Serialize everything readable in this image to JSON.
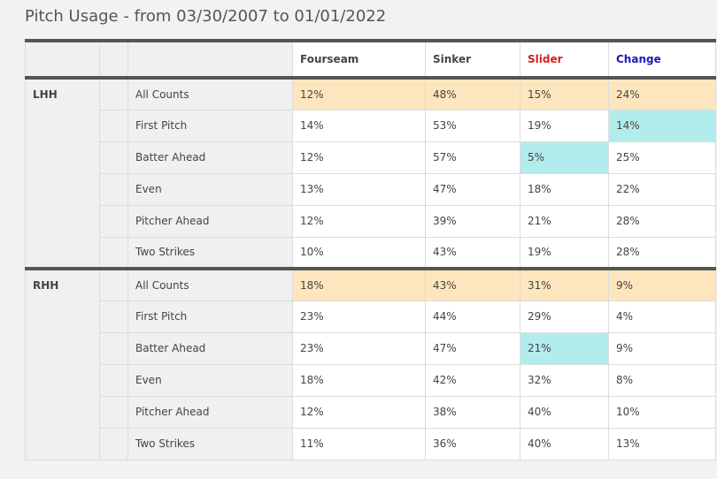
{
  "title": "Pitch Usage - from 03/30/2007 to 01/01/2022",
  "columns": [
    {
      "label": "Fourseam",
      "key": "fourseam",
      "color": "#444444"
    },
    {
      "label": "Sinker",
      "key": "sinker",
      "color": "#444444"
    },
    {
      "label": "Slider",
      "key": "slider",
      "color": "#d22020"
    },
    {
      "label": "Change",
      "key": "change",
      "color": "#1a1ab8"
    }
  ],
  "groups": [
    {
      "label": "LHH",
      "rows": [
        {
          "count": "All Counts",
          "values": [
            "12%",
            "48%",
            "15%",
            "24%"
          ],
          "highlight": []
        },
        {
          "count": "First Pitch",
          "values": [
            "14%",
            "53%",
            "19%",
            "14%"
          ],
          "highlight": [
            3
          ]
        },
        {
          "count": "Batter Ahead",
          "values": [
            "12%",
            "57%",
            "5%",
            "25%"
          ],
          "highlight": [
            2
          ]
        },
        {
          "count": "Even",
          "values": [
            "13%",
            "47%",
            "18%",
            "22%"
          ],
          "highlight": []
        },
        {
          "count": "Pitcher Ahead",
          "values": [
            "12%",
            "39%",
            "21%",
            "28%"
          ],
          "highlight": []
        },
        {
          "count": "Two Strikes",
          "values": [
            "10%",
            "43%",
            "19%",
            "28%"
          ],
          "highlight": []
        }
      ]
    },
    {
      "label": "RHH",
      "rows": [
        {
          "count": "All Counts",
          "values": [
            "18%",
            "43%",
            "31%",
            "9%"
          ],
          "highlight": []
        },
        {
          "count": "First Pitch",
          "values": [
            "23%",
            "44%",
            "29%",
            "4%"
          ],
          "highlight": []
        },
        {
          "count": "Batter Ahead",
          "values": [
            "23%",
            "47%",
            "21%",
            "9%"
          ],
          "highlight": [
            2
          ]
        },
        {
          "count": "Even",
          "values": [
            "18%",
            "42%",
            "32%",
            "8%"
          ],
          "highlight": []
        },
        {
          "count": "Pitcher Ahead",
          "values": [
            "12%",
            "38%",
            "40%",
            "10%"
          ],
          "highlight": []
        },
        {
          "count": "Two Strikes",
          "values": [
            "11%",
            "36%",
            "40%",
            "13%"
          ],
          "highlight": []
        }
      ]
    }
  ],
  "colors": {
    "all_counts_bg": "#fde6bd",
    "highlight_bg": "#b3ecec",
    "slider_header": "#d22020",
    "change_header": "#1a1ab8"
  }
}
